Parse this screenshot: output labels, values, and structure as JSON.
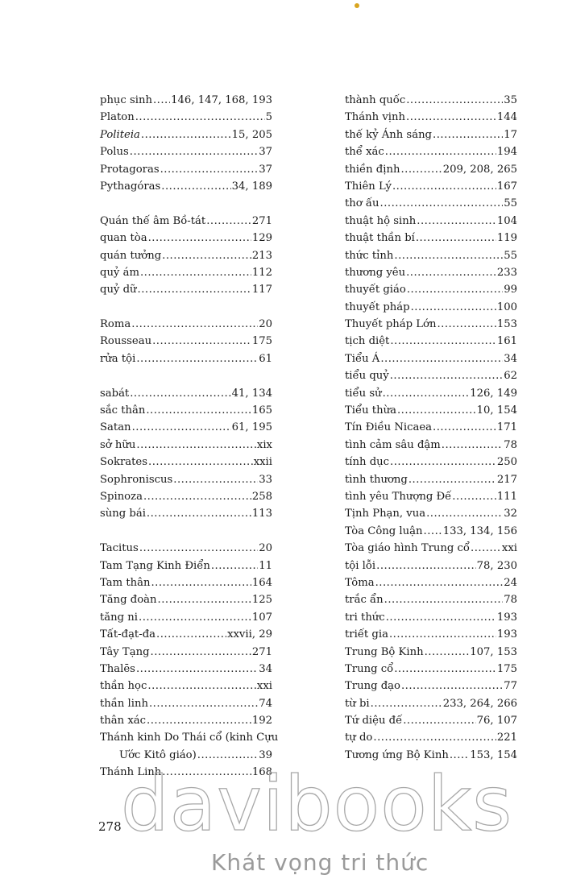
{
  "index": {
    "left_column": [
      [
        {
          "term": "phục sinh",
          "pages": "146, 147, 168, 193"
        },
        {
          "term": "Platon",
          "pages": "5"
        },
        {
          "term": "Politeia",
          "pages": "15, 205",
          "italic": true
        },
        {
          "term": "Polus",
          "pages": "37"
        },
        {
          "term": "Protagoras",
          "pages": "37"
        },
        {
          "term": "Pythagóras",
          "pages": "34, 189"
        }
      ],
      [
        {
          "term": "Quán thế âm Bồ-tát",
          "pages": "271"
        },
        {
          "term": "quan tòa",
          "pages": "129"
        },
        {
          "term": "quán tưởng",
          "pages": "213"
        },
        {
          "term": "quỷ ám",
          "pages": "112"
        },
        {
          "term": "quỷ dữ",
          "pages": "117"
        }
      ],
      [
        {
          "term": "Roma",
          "pages": "20"
        },
        {
          "term": "Rousseau",
          "pages": "175"
        },
        {
          "term": "rửa tội",
          "pages": "61"
        }
      ],
      [
        {
          "term": "sabát",
          "pages": "41, 134"
        },
        {
          "term": "sắc thân",
          "pages": "165"
        },
        {
          "term": "Satan",
          "pages": "61, 195"
        },
        {
          "term": "sở hữu",
          "pages": "xix"
        },
        {
          "term": "Sokrates",
          "pages": "xxii"
        },
        {
          "term": "Sophroniscus",
          "pages": "33"
        },
        {
          "term": "Spinoza",
          "pages": "258"
        },
        {
          "term": "sùng bái",
          "pages": "113"
        }
      ],
      [
        {
          "term": "Tacitus",
          "pages": "20"
        },
        {
          "term": "Tam Tạng Kinh Điển",
          "pages": "11"
        },
        {
          "term": "Tam thân",
          "pages": "164"
        },
        {
          "term": "Tăng đoàn",
          "pages": "125"
        },
        {
          "term": "tăng ni",
          "pages": "107"
        },
        {
          "term": "Tất-đạt-đa",
          "pages": "xxvii, 29"
        },
        {
          "term": "Tây Tạng",
          "pages": "271"
        },
        {
          "term": "Thalēs",
          "pages": "34"
        },
        {
          "term": "thần học",
          "pages": "xxi"
        },
        {
          "term": "thần linh",
          "pages": "74"
        },
        {
          "term": "thân xác",
          "pages": "192"
        },
        {
          "term": "Thánh kinh Do Thái cổ (kinh Cựu",
          "continuation": "Ước Kitô giáo)",
          "pages": "39"
        },
        {
          "term": "Thánh Linh",
          "pages": "168"
        }
      ]
    ],
    "right_column": [
      [
        {
          "term": "thành quốc",
          "pages": "35"
        },
        {
          "term": "Thánh vịnh",
          "pages": "144"
        },
        {
          "term": "thế kỷ Ánh sáng",
          "pages": "17"
        },
        {
          "term": "thể xác",
          "pages": "194"
        },
        {
          "term": "thiền định",
          "pages": "209, 208, 265"
        },
        {
          "term": "Thiên Lý",
          "pages": "167"
        },
        {
          "term": "thơ ấu",
          "pages": "55"
        },
        {
          "term": "thuật hộ sinh",
          "pages": "104"
        },
        {
          "term": "thuật thần bí",
          "pages": "119"
        },
        {
          "term": "thức tỉnh",
          "pages": "55"
        },
        {
          "term": "thương yêu",
          "pages": "233"
        },
        {
          "term": "thuyết giáo",
          "pages": "99"
        },
        {
          "term": "thuyết pháp",
          "pages": "100"
        },
        {
          "term": "Thuyết pháp Lớn",
          "pages": "153"
        },
        {
          "term": "tịch diệt",
          "pages": "161"
        },
        {
          "term": "Tiểu Á",
          "pages": "34"
        },
        {
          "term": "tiểu quỷ",
          "pages": "62"
        },
        {
          "term": "tiểu sử",
          "pages": "126, 149"
        },
        {
          "term": "Tiểu thừa",
          "pages": "10, 154"
        },
        {
          "term": "Tín Điều Nicaea",
          "pages": "171"
        },
        {
          "term": "tình cảm sâu đậm",
          "pages": "78"
        },
        {
          "term": "tính dục",
          "pages": "250"
        },
        {
          "term": "tình thương",
          "pages": "217"
        },
        {
          "term": "tình yêu Thượng Đế",
          "pages": "111"
        },
        {
          "term": "Tịnh Phạn, vua",
          "pages": "32"
        },
        {
          "term": "Tòa Công luận",
          "pages": "133, 134, 156"
        },
        {
          "term": "Tòa giáo hình Trung cổ",
          "pages": "xxi"
        },
        {
          "term": "tội lỗi",
          "pages": "78, 230"
        },
        {
          "term": "Tôma",
          "pages": "24"
        },
        {
          "term": "trắc ẩn",
          "pages": "78"
        },
        {
          "term": "tri thức",
          "pages": "193"
        },
        {
          "term": "triết gia",
          "pages": "193"
        },
        {
          "term": "Trung Bộ Kinh",
          "pages": "107, 153"
        },
        {
          "term": "Trung cổ",
          "pages": "175"
        },
        {
          "term": "Trung đạo",
          "pages": "77"
        },
        {
          "term": "từ bi",
          "pages": "233, 264, 266"
        },
        {
          "term": "Tứ diệu đế",
          "pages": "76, 107"
        },
        {
          "term": "tự do",
          "pages": "221"
        },
        {
          "term": "Tương ứng Bộ Kinh",
          "pages": "153, 154"
        }
      ]
    ]
  },
  "page_number": "278",
  "watermark": {
    "brand": "davibooks",
    "slogan": "Khát vọng tri thức"
  }
}
